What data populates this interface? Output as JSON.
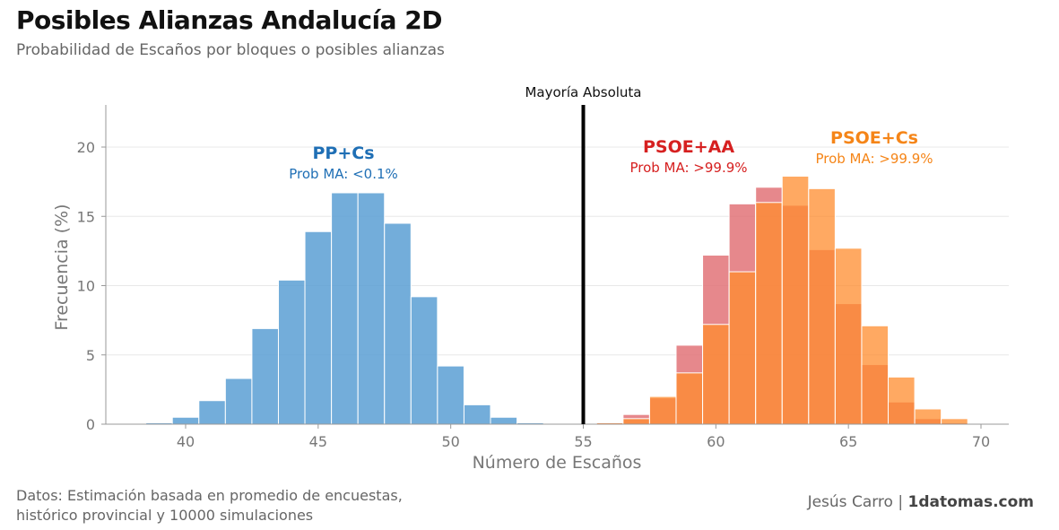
{
  "header": {
    "title": "Posibles Alianzas Andalucía 2D",
    "subtitle": "Probabilidad de Escaños por bloques o posibles alianzas"
  },
  "footer": {
    "source_line1": "Datos: Estimación basada en promedio de encuestas,",
    "source_line2": "histórico provincial y 10000 simulaciones",
    "author": "Jesús Carro",
    "separator": "|",
    "site": "1datomas.com"
  },
  "chart_data": {
    "type": "bar",
    "xlabel": "Número de Escaños",
    "ylabel": "Frecuencia (%)",
    "xlim": [
      37,
      71
    ],
    "ylim": [
      0,
      23
    ],
    "xticks": [
      40,
      45,
      50,
      55,
      60,
      65,
      70
    ],
    "yticks": [
      0,
      5,
      10,
      15,
      20
    ],
    "grid": true,
    "majority_line": {
      "x": 55,
      "label": "Mayoría Absoluta"
    },
    "series": [
      {
        "name": "PP+Cs",
        "prob_label": "Prob MA: <0.1%",
        "color": "#5a9fd4",
        "label_color": "#1f6fb5",
        "x": [
          39,
          40,
          41,
          42,
          43,
          44,
          45,
          46,
          47,
          48,
          49,
          50,
          51,
          52,
          53
        ],
        "values": [
          0.1,
          0.5,
          1.7,
          3.3,
          6.9,
          10.4,
          13.9,
          16.7,
          16.7,
          14.5,
          9.2,
          4.2,
          1.4,
          0.5,
          0.1
        ]
      },
      {
        "name": "PSOE+AA",
        "prob_label": "Prob MA: >99.9%",
        "color": "#e06a6f",
        "label_color": "#d62020",
        "x": [
          56,
          57,
          58,
          59,
          60,
          61,
          62,
          63,
          64,
          65,
          66,
          67,
          68,
          69
        ],
        "values": [
          0.1,
          0.7,
          1.9,
          5.7,
          12.2,
          15.9,
          17.1,
          15.8,
          12.6,
          8.7,
          4.3,
          1.6,
          0.4,
          0.1
        ]
      },
      {
        "name": "PSOE+Cs",
        "prob_label": "Prob MA: >99.9%",
        "color": "#ff8c2e",
        "label_color": "#f58518",
        "x": [
          56,
          57,
          58,
          59,
          60,
          61,
          62,
          63,
          64,
          65,
          66,
          67,
          68,
          69
        ],
        "values": [
          0.1,
          0.4,
          2.0,
          3.7,
          7.2,
          11.0,
          16.0,
          17.9,
          17.0,
          12.7,
          7.1,
          3.4,
          1.1,
          0.4
        ]
      }
    ]
  }
}
